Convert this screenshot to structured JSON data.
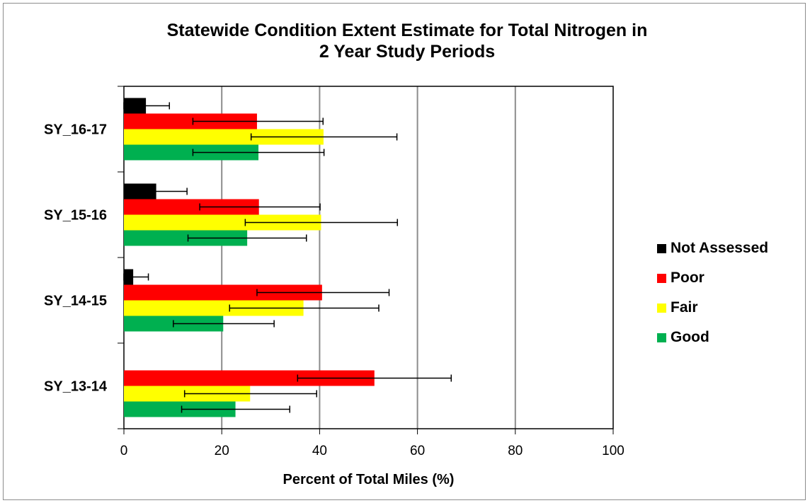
{
  "chart_data": {
    "type": "bar",
    "orientation": "horizontal",
    "title_lines": [
      "Statewide Condition Extent Estimate for Total Nitrogen in",
      "2 Year Study Periods"
    ],
    "xlabel": "Percent of Total Miles (%)",
    "ylabel": "",
    "xlim": [
      0,
      100
    ],
    "xticks": [
      "0",
      "20",
      "40",
      "60",
      "80",
      "100"
    ],
    "grid": true,
    "legend_position": "right",
    "categories": [
      "SY_16-17",
      "SY_15-16",
      "SY_14-15",
      "SY_13-14"
    ],
    "series": [
      {
        "name": "Not Assessed",
        "color": "#000000",
        "values": [
          4.5,
          6.6,
          1.9,
          0.0
        ],
        "error_low": [
          0.0,
          0.6,
          0.0,
          0.0
        ],
        "error_high": [
          9.3,
          12.9,
          5.0,
          0.0
        ]
      },
      {
        "name": "Poor",
        "color": "#ff0000",
        "values": [
          27.2,
          27.6,
          40.5,
          51.2
        ],
        "error_low": [
          14.1,
          15.5,
          27.2,
          35.5
        ],
        "error_high": [
          40.7,
          40.1,
          54.2,
          66.9
        ]
      },
      {
        "name": "Fair",
        "color": "#ffff00",
        "values": [
          40.8,
          40.3,
          36.7,
          25.8
        ],
        "error_low": [
          26.0,
          24.8,
          21.6,
          12.4
        ],
        "error_high": [
          55.8,
          55.9,
          52.1,
          39.4
        ]
      },
      {
        "name": "Good",
        "color": "#00b050",
        "values": [
          27.5,
          25.2,
          20.3,
          22.8
        ],
        "error_low": [
          14.1,
          13.1,
          10.1,
          11.8
        ],
        "error_high": [
          40.9,
          37.3,
          30.7,
          33.9
        ]
      }
    ]
  }
}
